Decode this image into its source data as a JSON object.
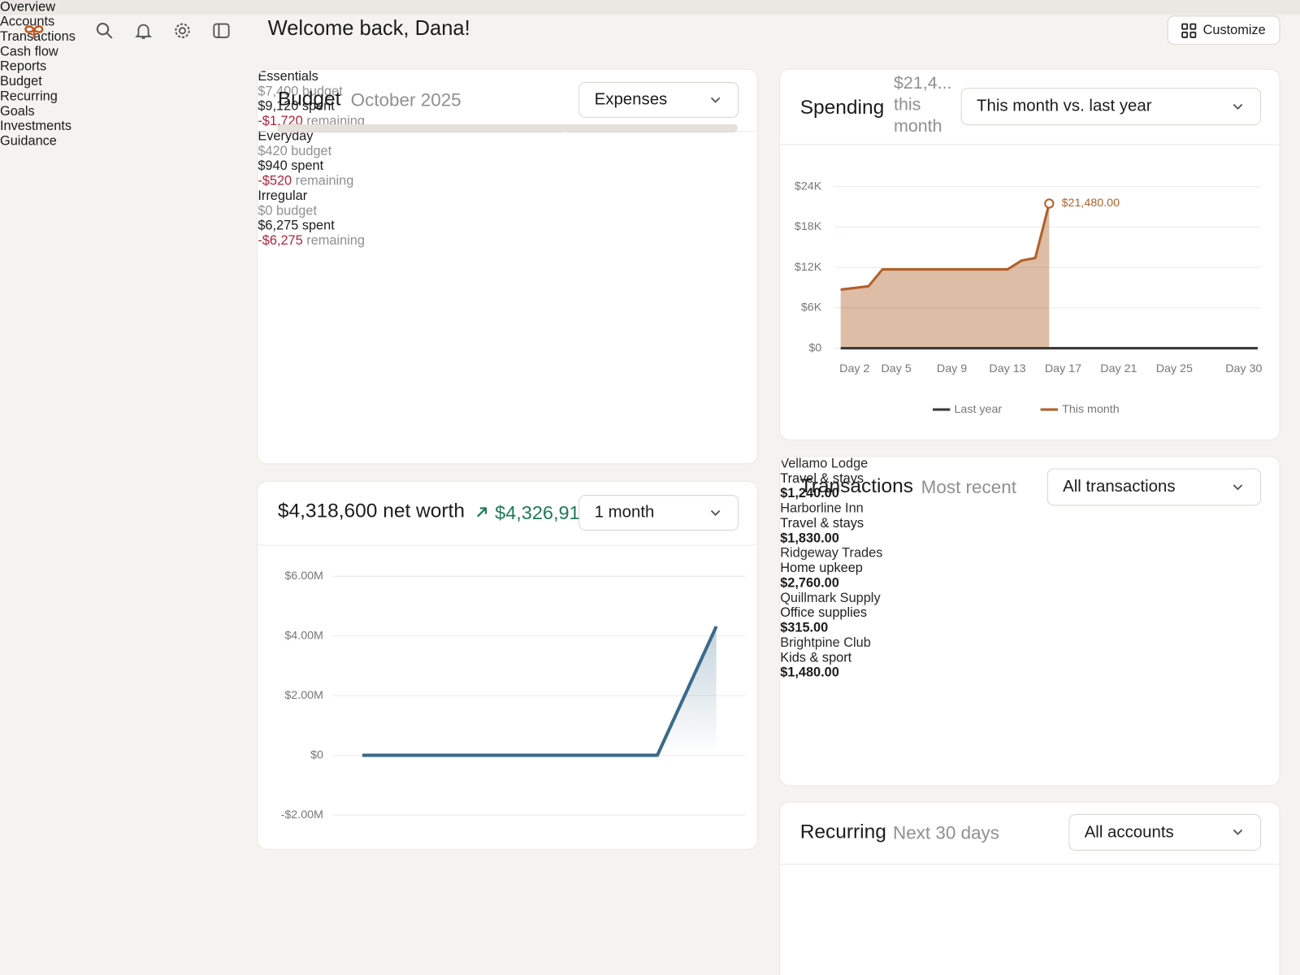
{
  "header": {
    "title": "Welcome back, Dana!",
    "customize": "Customize"
  },
  "nav": [
    "Overview",
    "Accounts",
    "Transactions",
    "Cash flow",
    "Reports",
    "Budget",
    "Recurring",
    "Goals",
    "Investments",
    "Guidance"
  ],
  "budget": {
    "title": "Budget",
    "period": "October 2025",
    "filter": "Expenses",
    "groups": [
      {
        "name": "Essentials",
        "budget": "$7,400 budget",
        "spent": "$9,120 spent",
        "remaining": "-$1,720",
        "remaining_label": "remaining"
      },
      {
        "name": "Everyday",
        "budget": "$420 budget",
        "spent": "$940 spent",
        "remaining": "-$520",
        "remaining_label": "remaining"
      },
      {
        "name": "Irregular",
        "budget": "$0 budget",
        "spent": "$6,275 spent",
        "remaining": "-$6,275",
        "remaining_label": "remaining"
      }
    ]
  },
  "net_worth": {
    "title": "$4,318,600 net worth",
    "change": "$4,326,91",
    "filter": "1 month",
    "chart_data": {
      "type": "line",
      "x": [
        0,
        25,
        30
      ],
      "values": [
        0,
        0,
        4318600
      ],
      "color": "#3c6a8b",
      "xlim": [
        0,
        30
      ],
      "ylim": [
        -2000000,
        6000000
      ],
      "yticks": [
        {
          "value": -2000000,
          "label": "-$2.00M"
        },
        {
          "value": 0,
          "label": "$0"
        },
        {
          "value": 2000000,
          "label": "$2.00M"
        },
        {
          "value": 4000000,
          "label": "$4.00M"
        },
        {
          "value": 6000000,
          "label": "$6.00M"
        }
      ],
      "grid": true
    }
  },
  "spending": {
    "title": "Spending",
    "subtitle": "$21,4... this month",
    "filter": "This month vs. last year",
    "chart_data": {
      "type": "area",
      "xlim": [
        1,
        31
      ],
      "ylim": [
        0,
        24000
      ],
      "xticks": [
        {
          "value": 2,
          "label": "Day 2"
        },
        {
          "value": 5,
          "label": "Day 5"
        },
        {
          "value": 9,
          "label": "Day 9"
        },
        {
          "value": 13,
          "label": "Day 13"
        },
        {
          "value": 17,
          "label": "Day 17"
        },
        {
          "value": 21,
          "label": "Day 21"
        },
        {
          "value": 25,
          "label": "Day 25"
        },
        {
          "value": 30,
          "label": "Day 30"
        }
      ],
      "yticks": [
        {
          "value": 0,
          "label": "$0"
        },
        {
          "value": 6000,
          "label": "$6K"
        },
        {
          "value": 12000,
          "label": "$12K"
        },
        {
          "value": 18000,
          "label": "$18K"
        },
        {
          "value": 24000,
          "label": "$24K"
        }
      ],
      "grid": true,
      "legend": "bottom",
      "series": [
        {
          "name": "Last year",
          "color": "#3b3b3b",
          "x": [
            1,
            31
          ],
          "values": [
            0,
            0
          ]
        },
        {
          "name": "This month",
          "color": "#b0612a",
          "x": [
            1,
            3,
            4,
            13,
            14,
            15,
            16
          ],
          "values": [
            8700,
            9200,
            11700,
            11700,
            13000,
            13400,
            21480
          ],
          "value_labels": [
            null,
            null,
            null,
            null,
            null,
            null,
            "$21,480.00"
          ]
        }
      ]
    }
  },
  "transactions": {
    "title": "Transactions",
    "subtitle": "Most recent",
    "filter": "All transactions",
    "rows": [
      {
        "merchant": "Vellamo Lodge",
        "category": "Travel & stays",
        "amount": "$1,240.00",
        "dots": [
          "#b3aea7"
        ]
      },
      {
        "merchant": "Harborline Inn",
        "category": "Travel & stays",
        "amount": "$1,830.00",
        "dots": [
          "#d6a332"
        ]
      },
      {
        "merchant": "Ridgeway Trades",
        "category": "Home upkeep",
        "amount": "$2,760.00",
        "dots": [
          "#1f7a55"
        ]
      },
      {
        "merchant": "Quillmark Supply",
        "category": "Office supplies",
        "amount": "$315.00",
        "dots": [
          "#c4622d",
          "#b8273a"
        ]
      },
      {
        "merchant": "Brightpine Club",
        "category": "Kids & sport",
        "amount": "$1,480.00",
        "dots": [
          "#3c6a8b"
        ]
      }
    ]
  },
  "recurring": {
    "title": "Recurring",
    "subtitle": "Next 30 days",
    "filter": "All accounts"
  }
}
